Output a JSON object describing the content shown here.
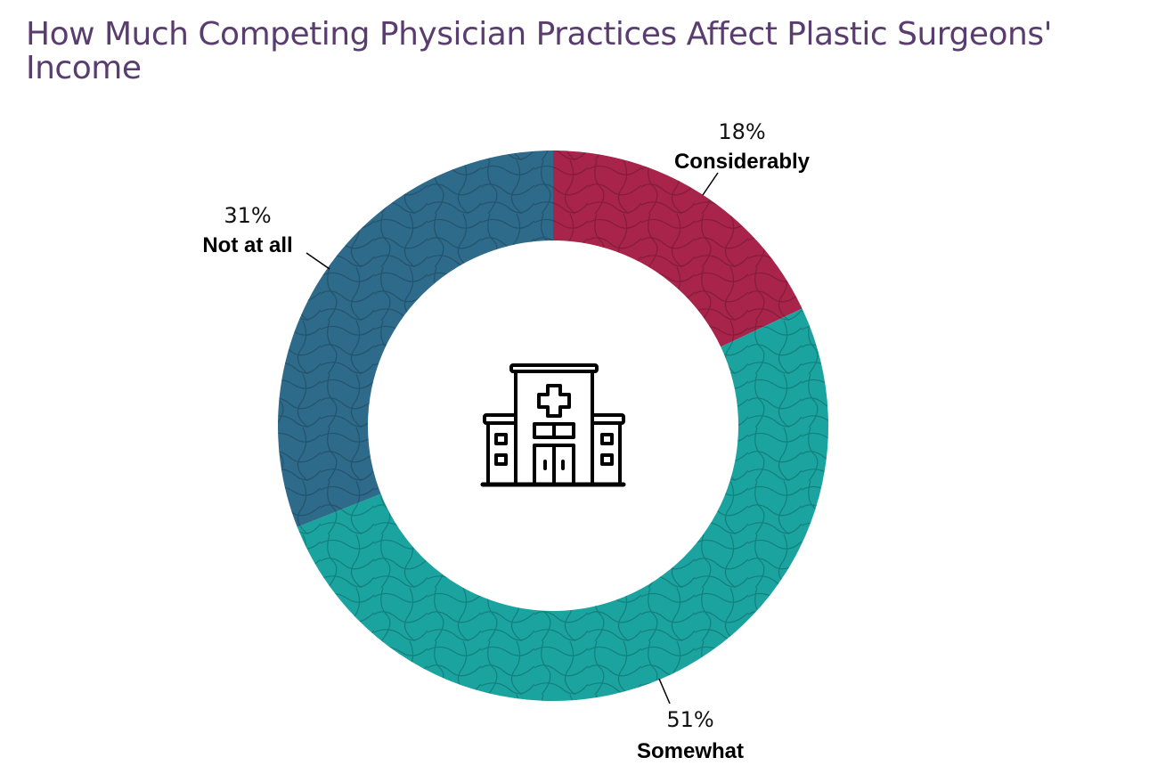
{
  "title": "How Much Competing Physician Practices Affect Plastic Surgeons' Income",
  "title_line1": "How Much Competing Physician Practices Affect Plastic Surgeons'",
  "title_line2": "Income",
  "center_icon": "hospital-icon",
  "colors": {
    "title": "#5a3d6f",
    "considerably": "#a8244a",
    "somewhat": "#1aa39f",
    "not_at_all": "#2e6a8a"
  },
  "labels": {
    "considerably_pct": "18%",
    "considerably": "Considerably",
    "somewhat_pct": "51%",
    "somewhat": "Somewhat",
    "not_at_all_pct": "31%",
    "not_at_all": "Not at all"
  },
  "chart_data": {
    "type": "pie",
    "subtype": "donut",
    "title": "How Much Competing Physician Practices Affect Plastic Surgeons' Income",
    "categories": [
      "Considerably",
      "Somewhat",
      "Not at all"
    ],
    "values": [
      18,
      51,
      31
    ],
    "unit": "%",
    "colors": [
      "#a8244a",
      "#1aa39f",
      "#2e6a8a"
    ],
    "start_angle": "12 o'clock, clockwise",
    "center_icon": "hospital",
    "legend": "none (direct labels with leader lines)"
  }
}
